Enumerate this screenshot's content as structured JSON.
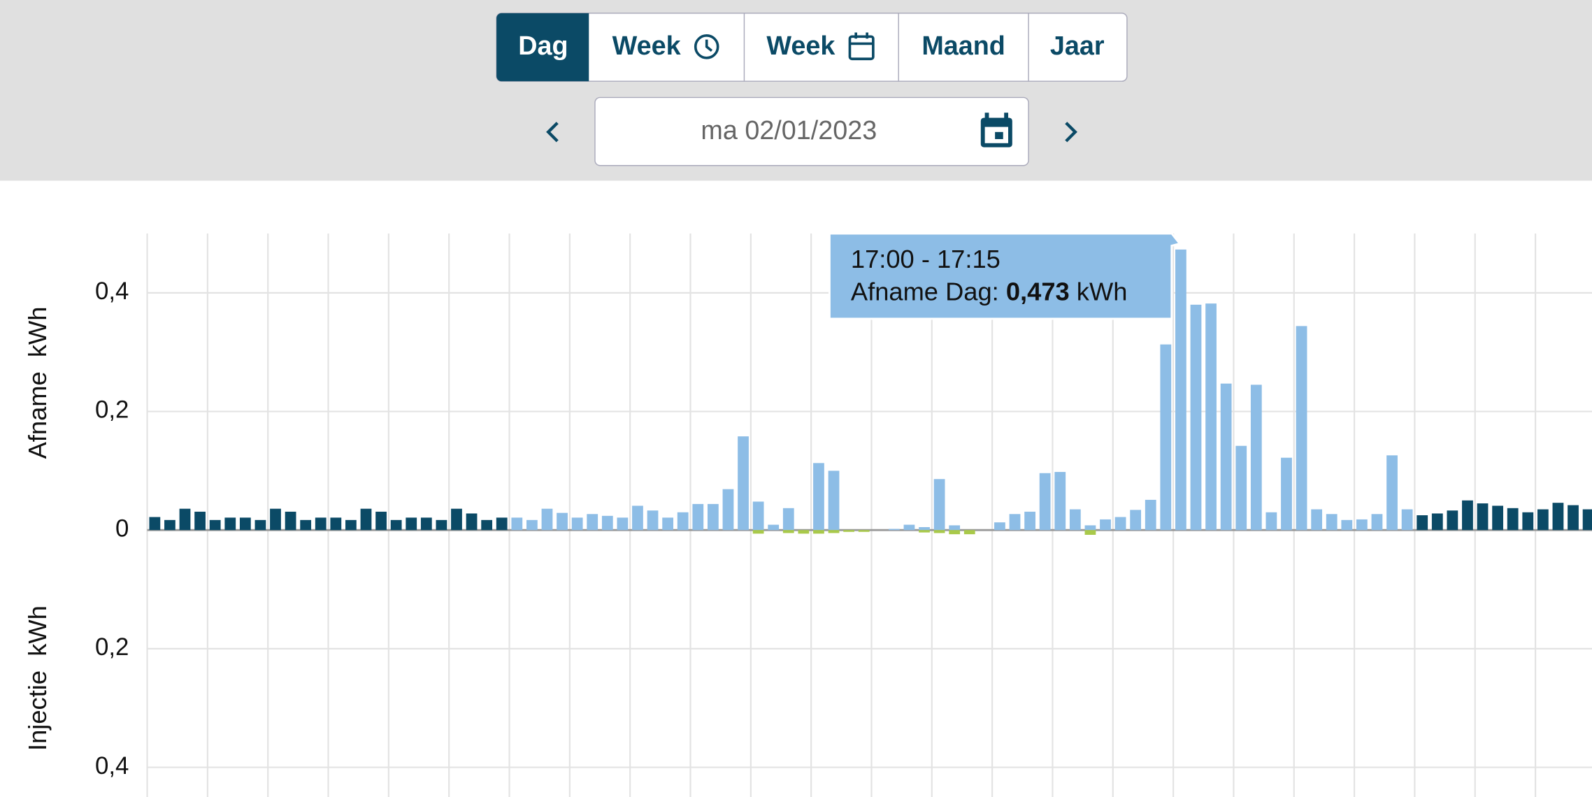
{
  "header": {
    "tabs": [
      "Dag",
      "Week",
      "Week",
      "Maand",
      "Jaar"
    ],
    "date": "ma 02/01/2023"
  },
  "tooltip": {
    "time": "17:00 - 17:15",
    "label": "Afname Dag:",
    "value": "0,473",
    "unit": "kWh"
  },
  "chart_data": {
    "type": "bar",
    "y_label_top": "Afname  kWh",
    "y_label_bottom": "Injectie  kWh",
    "ylim": [
      -0.45,
      0.5
    ],
    "yticks": [
      {
        "value": 0.4,
        "label": "0,4"
      },
      {
        "value": 0.2,
        "label": "0,2"
      },
      0,
      {
        "value": -0.2,
        "label": "0,2"
      },
      {
        "value": -0.4,
        "label": "0,4"
      }
    ],
    "grid": true,
    "series": [
      {
        "color": "#0b4a66",
        "values": [
          0.022,
          0.017,
          0.036,
          0.031,
          0.017,
          0.021,
          0.021,
          0.017,
          0.036,
          0.031,
          0.017,
          0.021,
          0.021,
          0.017,
          0.036,
          0.031,
          0.017,
          0.021,
          0.021,
          0.017,
          0.036,
          0.028,
          0.017,
          0.021,
          null,
          null,
          null,
          null,
          null,
          null,
          null,
          null,
          null,
          null,
          null,
          null,
          null,
          null,
          null,
          null,
          null,
          null,
          null,
          null,
          null,
          null,
          null,
          null,
          null,
          null,
          null,
          null,
          null,
          null,
          null,
          null,
          null,
          null,
          null,
          null,
          null,
          null,
          null,
          null,
          null,
          null,
          null,
          null,
          null,
          null,
          null,
          null,
          null,
          null,
          null,
          null,
          null,
          null,
          null,
          null,
          null,
          null,
          null,
          null,
          0.025,
          0.028,
          0.033,
          0.05,
          0.045,
          0.041,
          0.037,
          0.03,
          0.035,
          0.046,
          0.042,
          0.035
        ]
      },
      {
        "color": "#8dbde6",
        "values": [
          null,
          null,
          null,
          null,
          null,
          null,
          null,
          null,
          null,
          null,
          null,
          null,
          null,
          null,
          null,
          null,
          null,
          null,
          null,
          null,
          null,
          null,
          null,
          null,
          0.021,
          0.017,
          0.036,
          0.029,
          0.021,
          0.027,
          0.024,
          0.021,
          0.041,
          0.033,
          0.021,
          0.03,
          0.044,
          0.044,
          0.069,
          0.158,
          0.048,
          0.009,
          0.037,
          0,
          0.113,
          0.1,
          0,
          0,
          0,
          0.002,
          0.009,
          0.005,
          0.086,
          0.008,
          0,
          0,
          0.013,
          0.027,
          0.031,
          0.096,
          0.098,
          0.035,
          0.008,
          0.018,
          0.022,
          0.034,
          0.051,
          0.313,
          0.473,
          0.38,
          0.382,
          0.247,
          0.142,
          0.245,
          0.03,
          0.122,
          0.344,
          0.035,
          0.027,
          0.017,
          0.018,
          0.027,
          0.126,
          0.035,
          null,
          null,
          null,
          null,
          null,
          null,
          null,
          null,
          null,
          null,
          null,
          null
        ]
      },
      {
        "color": "#a9c94a",
        "values": [
          null,
          null,
          null,
          null,
          null,
          null,
          null,
          null,
          null,
          null,
          null,
          null,
          null,
          null,
          null,
          null,
          null,
          null,
          null,
          null,
          null,
          null,
          null,
          null,
          null,
          null,
          null,
          null,
          null,
          null,
          null,
          null,
          null,
          null,
          null,
          null,
          null,
          null,
          null,
          null,
          -0.006,
          null,
          -0.005,
          -0.006,
          -0.006,
          -0.005,
          -0.003,
          -0.003,
          null,
          null,
          null,
          -0.004,
          -0.005,
          -0.007,
          -0.007,
          null,
          null,
          null,
          null,
          null,
          null,
          null,
          -0.008,
          null,
          null,
          null,
          null,
          null,
          null,
          null,
          null,
          null,
          null,
          null,
          null,
          null,
          null,
          null,
          null,
          null,
          null,
          null,
          null,
          null,
          null,
          null,
          null,
          null,
          null,
          null,
          null,
          null,
          null,
          null,
          null,
          null,
          null,
          null,
          null,
          null,
          null,
          null,
          null,
          null,
          null,
          null,
          null,
          null
        ]
      }
    ]
  }
}
